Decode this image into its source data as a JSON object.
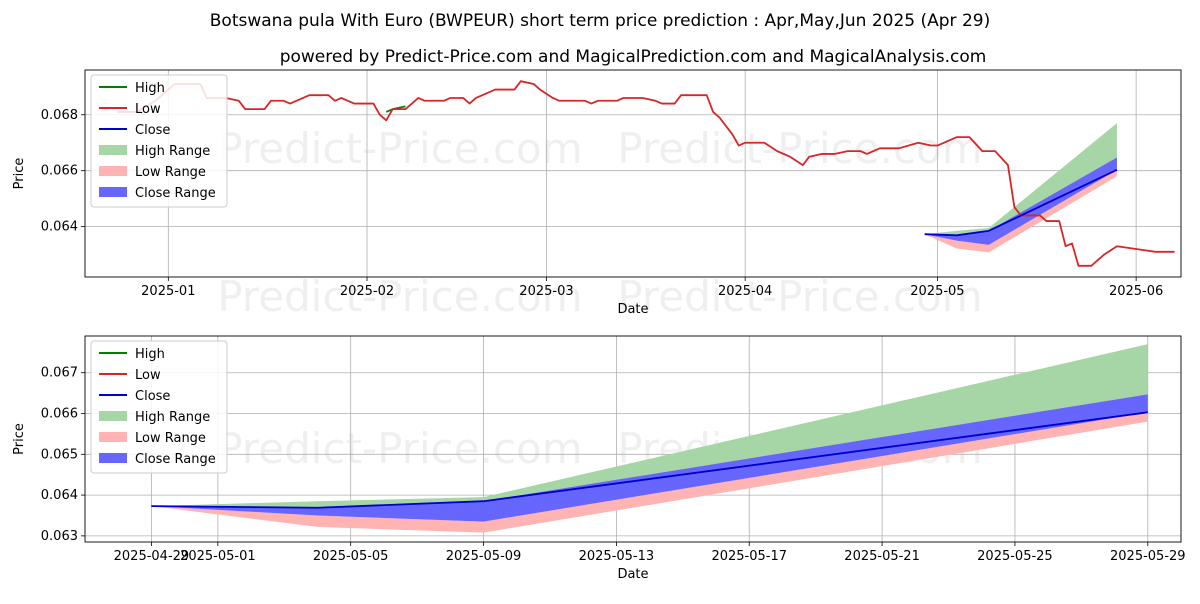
{
  "title": "Botswana pula With Euro (BWPEUR) short term price prediction : Apr,May,Jun 2025 (Apr 29)",
  "subtitle": "powered by Predict-Price.com and MagicalPrediction.com and MagicalAnalysis.com",
  "watermark": "Predict-Price.com",
  "colors": {
    "high": "#008000",
    "low": "#d62728",
    "close": "#0000cc",
    "high_range": "#a6d5a6",
    "low_range": "#ffb3b3",
    "close_range": "#6666ff",
    "grid": "#b0b0b0"
  },
  "legend": [
    "High",
    "Low",
    "Close",
    "High Range",
    "Low Range",
    "Close Range"
  ],
  "chart_data": [
    {
      "type": "line",
      "panel": "history",
      "xlabel": "Date",
      "ylabel": "Price",
      "xlim": [
        "2024-12-19",
        "2025-06-08"
      ],
      "ylim": [
        0.0622,
        0.0696
      ],
      "xticks": [
        "2025-01",
        "2025-02",
        "2025-03",
        "2025-04",
        "2025-05",
        "2025-06"
      ],
      "xtick_dates": [
        "2025-01-01",
        "2025-02-01",
        "2025-03-01",
        "2025-04-01",
        "2025-05-01",
        "2025-06-01"
      ],
      "yticks": [
        0.064,
        0.066,
        0.068
      ],
      "ytick_labels": [
        "0.064",
        "0.066",
        "0.068"
      ],
      "history_low": [
        [
          "2024-12-24",
          0.0681
        ],
        [
          "2024-12-27",
          0.0681
        ],
        [
          "2024-12-30",
          0.0685
        ],
        [
          "2025-01-02",
          0.0691
        ],
        [
          "2025-01-04",
          0.0691
        ],
        [
          "2025-01-06",
          0.0691
        ],
        [
          "2025-01-07",
          0.0686
        ],
        [
          "2025-01-10",
          0.0686
        ],
        [
          "2025-01-12",
          0.0685
        ],
        [
          "2025-01-13",
          0.0682
        ],
        [
          "2025-01-16",
          0.0682
        ],
        [
          "2025-01-17",
          0.0685
        ],
        [
          "2025-01-19",
          0.0685
        ],
        [
          "2025-01-20",
          0.0684
        ],
        [
          "2025-01-23",
          0.0687
        ],
        [
          "2025-01-26",
          0.0687
        ],
        [
          "2025-01-27",
          0.0685
        ],
        [
          "2025-01-28",
          0.0686
        ],
        [
          "2025-01-30",
          0.0684
        ],
        [
          "2025-02-02",
          0.0684
        ],
        [
          "2025-02-03",
          0.068
        ],
        [
          "2025-02-04",
          0.0678
        ],
        [
          "2025-02-05",
          0.0682
        ],
        [
          "2025-02-07",
          0.0682
        ],
        [
          "2025-02-09",
          0.0686
        ],
        [
          "2025-02-10",
          0.0685
        ],
        [
          "2025-02-13",
          0.0685
        ],
        [
          "2025-02-14",
          0.0686
        ],
        [
          "2025-02-16",
          0.0686
        ],
        [
          "2025-02-17",
          0.0684
        ],
        [
          "2025-02-18",
          0.0686
        ],
        [
          "2025-02-21",
          0.0689
        ],
        [
          "2025-02-24",
          0.0689
        ],
        [
          "2025-02-25",
          0.0692
        ],
        [
          "2025-02-27",
          0.0691
        ],
        [
          "2025-02-28",
          0.0689
        ],
        [
          "2025-03-02",
          0.0686
        ],
        [
          "2025-03-03",
          0.0685
        ],
        [
          "2025-03-07",
          0.0685
        ],
        [
          "2025-03-08",
          0.0684
        ],
        [
          "2025-03-09",
          0.0685
        ],
        [
          "2025-03-12",
          0.0685
        ],
        [
          "2025-03-13",
          0.0686
        ],
        [
          "2025-03-16",
          0.0686
        ],
        [
          "2025-03-18",
          0.0685
        ],
        [
          "2025-03-19",
          0.0684
        ],
        [
          "2025-03-21",
          0.0684
        ],
        [
          "2025-03-22",
          0.0687
        ],
        [
          "2025-03-26",
          0.0687
        ],
        [
          "2025-03-27",
          0.0681
        ],
        [
          "2025-03-28",
          0.0679
        ],
        [
          "2025-03-30",
          0.0673
        ],
        [
          "2025-03-31",
          0.0669
        ],
        [
          "2025-04-01",
          0.067
        ],
        [
          "2025-04-04",
          0.067
        ],
        [
          "2025-04-06",
          0.0667
        ],
        [
          "2025-04-08",
          0.0665
        ],
        [
          "2025-04-10",
          0.0662
        ],
        [
          "2025-04-11",
          0.0665
        ],
        [
          "2025-04-13",
          0.0666
        ],
        [
          "2025-04-15",
          0.0666
        ],
        [
          "2025-04-17",
          0.0667
        ],
        [
          "2025-04-19",
          0.0667
        ],
        [
          "2025-04-20",
          0.0666
        ],
        [
          "2025-04-22",
          0.0668
        ],
        [
          "2025-04-25",
          0.0668
        ],
        [
          "2025-04-28",
          0.067
        ],
        [
          "2025-04-30",
          0.0669
        ],
        [
          "2025-05-01",
          0.0669
        ],
        [
          "2025-05-04",
          0.0672
        ],
        [
          "2025-05-06",
          0.0672
        ],
        [
          "2025-05-08",
          0.0667
        ],
        [
          "2025-05-10",
          0.0667
        ],
        [
          "2025-05-12",
          0.0662
        ],
        [
          "2025-05-13",
          0.0647
        ],
        [
          "2025-05-14",
          0.0644
        ],
        [
          "2025-05-15",
          0.0644
        ],
        [
          "2025-05-17",
          0.0644
        ],
        [
          "2025-05-18",
          0.0642
        ],
        [
          "2025-05-20",
          0.0642
        ],
        [
          "2025-05-21",
          0.0633
        ],
        [
          "2025-05-22",
          0.0634
        ],
        [
          "2025-05-23",
          0.0626
        ],
        [
          "2025-05-25",
          0.0626
        ],
        [
          "2025-05-27",
          0.063
        ],
        [
          "2025-05-29",
          0.0633
        ],
        [
          "2025-06-01",
          0.0632
        ],
        [
          "2025-06-04",
          0.0631
        ],
        [
          "2025-06-07",
          0.0631
        ]
      ],
      "history_high": [
        [
          "2025-02-04",
          0.0681
        ],
        [
          "2025-02-05",
          0.0682
        ],
        [
          "2025-02-07",
          0.0683
        ]
      ],
      "history_close": [
        [
          "2025-04-29",
          0.06373
        ],
        [
          "2025-05-04",
          0.06369
        ],
        [
          "2025-05-09",
          0.06385
        ],
        [
          "2025-05-29",
          0.06603
        ]
      ],
      "forecast_dates": [
        "2025-04-29",
        "2025-05-04",
        "2025-05-09",
        "2025-05-29"
      ],
      "forecast_high_upper": [
        0.06373,
        0.06385,
        0.06395,
        0.0677
      ],
      "forecast_high_lower": [
        0.06373,
        0.06369,
        0.06385,
        0.06603
      ],
      "forecast_close_upper": [
        0.06373,
        0.06369,
        0.06385,
        0.06647
      ],
      "forecast_close_lower": [
        0.06373,
        0.0635,
        0.06335,
        0.06603
      ],
      "forecast_low_upper": [
        0.06373,
        0.0635,
        0.06335,
        0.06603
      ],
      "forecast_low_lower": [
        0.06373,
        0.06322,
        0.06308,
        0.0658
      ]
    },
    {
      "type": "area",
      "panel": "forecast",
      "xlabel": "Date",
      "ylabel": "Price",
      "xlim": [
        "2025-04-27",
        "2025-05-30"
      ],
      "ylim": [
        0.06285,
        0.0679
      ],
      "xticks": [
        "2025-04-29",
        "2025-05-01",
        "2025-05-05",
        "2025-05-09",
        "2025-05-13",
        "2025-05-17",
        "2025-05-21",
        "2025-05-25",
        "2025-05-29"
      ],
      "yticks": [
        0.063,
        0.064,
        0.065,
        0.066,
        0.067
      ],
      "ytick_labels": [
        "0.063",
        "0.064",
        "0.065",
        "0.066",
        "0.067"
      ],
      "dates": [
        "2025-04-29",
        "2025-05-04",
        "2025-05-09",
        "2025-05-29"
      ],
      "close": [
        0.06373,
        0.06369,
        0.06385,
        0.06603
      ],
      "high_range": {
        "upper": [
          0.06373,
          0.06385,
          0.06395,
          0.0677
        ],
        "lower": [
          0.06373,
          0.06369,
          0.06385,
          0.06603
        ]
      },
      "close_range": {
        "upper": [
          0.06373,
          0.06369,
          0.06385,
          0.06647
        ],
        "lower": [
          0.06373,
          0.0635,
          0.06335,
          0.06603
        ]
      },
      "low_range": {
        "upper": [
          0.06373,
          0.0635,
          0.06335,
          0.06603
        ],
        "lower": [
          0.06373,
          0.06322,
          0.06308,
          0.0658
        ]
      }
    }
  ]
}
